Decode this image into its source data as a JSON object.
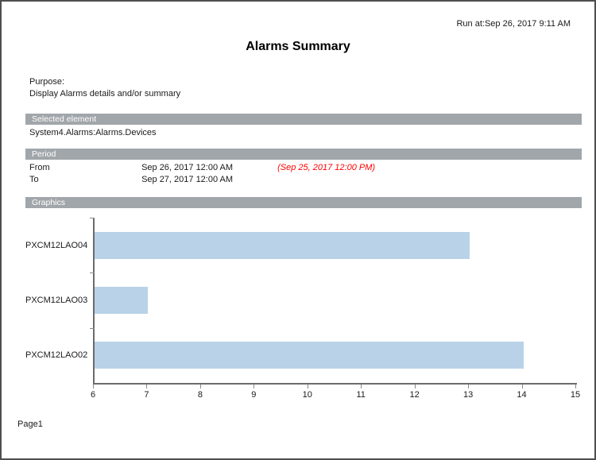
{
  "report": {
    "run_at": "Run at:Sep 26, 2017 9:11 AM",
    "title": "Alarms Summary",
    "purpose_label": "Purpose:",
    "purpose_text": "Display Alarms details and/or summary",
    "sections": {
      "selected_element": {
        "header": "Selected element",
        "value": "System4.Alarms:Alarms.Devices"
      },
      "period": {
        "header": "Period",
        "rows": [
          {
            "label": "From",
            "value": "Sep 26, 2017 12:00 AM",
            "note": "(Sep 25, 2017 12:00 PM)"
          },
          {
            "label": "To",
            "value": "Sep 27, 2017 12:00 AM",
            "note": ""
          }
        ]
      },
      "graphics": {
        "header": "Graphics"
      }
    },
    "footer": {
      "page_label": "Page1"
    }
  },
  "colors": {
    "bar_fill": "#b9d2e8",
    "section_header_bg": "#a1a6aa",
    "note_red": "#ff0000",
    "axis": "#6b6b6b",
    "page_border": "#4e4e4e"
  },
  "chart_data": {
    "type": "bar",
    "orientation": "horizontal",
    "title": "",
    "xlabel": "",
    "ylabel": "",
    "categories": [
      "PXCM12LAO04",
      "PXCM12LAO03",
      "PXCM12LAO02"
    ],
    "values": [
      13,
      7,
      14
    ],
    "xlim": [
      6,
      15
    ],
    "x_ticks": [
      6,
      7,
      8,
      9,
      10,
      11,
      12,
      13,
      14,
      15
    ],
    "grid": false,
    "legend": false
  }
}
